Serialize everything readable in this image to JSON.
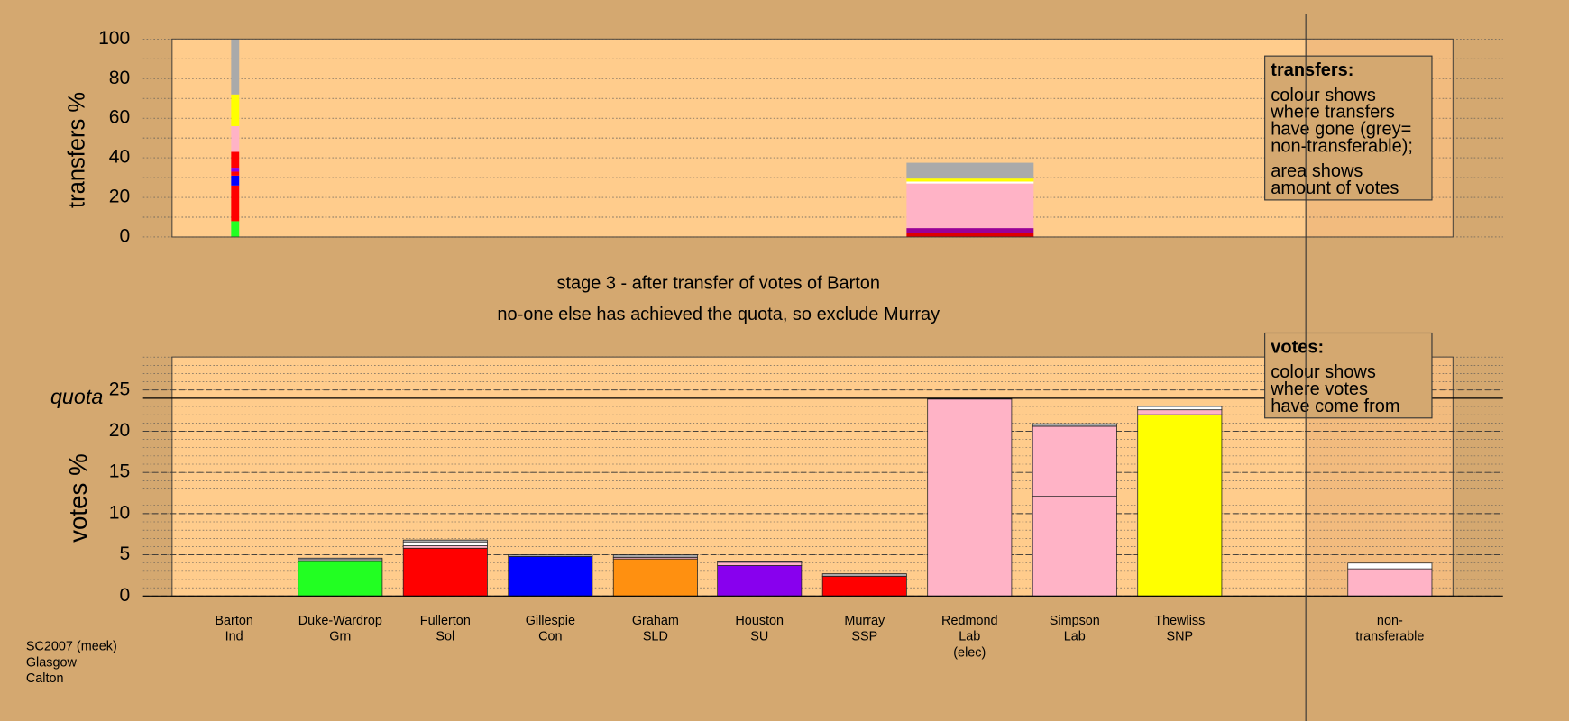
{
  "chart_data": [
    {
      "type": "bar",
      "ylabel": "transfers %",
      "ylim": [
        0,
        100
      ],
      "yticks": [
        0,
        20,
        40,
        60,
        80,
        100
      ],
      "series": [
        {
          "values": [
            8,
            18,
            5,
            2,
            2,
            8,
            13,
            16,
            28
          ],
          "colors": [
            "#22ff22",
            "#ff0000",
            "#0000ff",
            "#ff0000",
            "#8800ee",
            "#ff0000",
            "#ffb3c6",
            "#ffff00",
            "#aaaaaa"
          ]
        },
        {
          "values": [
            2,
            2.5,
            22.5,
            1,
            1.5,
            8
          ],
          "colors": [
            "#dd0000",
            "#990099",
            "#ffb3c6",
            "#ffffff",
            "#ffff00",
            "#aaaaaa"
          ]
        }
      ],
      "legend": {
        "title": "transfers:",
        "paragraphs": [
          [
            "colour shows",
            "where transfers",
            "have gone (grey=",
            "non-transferable);"
          ],
          [
            "area shows",
            "amount of votes"
          ]
        ]
      }
    },
    {
      "type": "bar",
      "ylabel": "votes %",
      "ylim": [
        0,
        29
      ],
      "yticks": [
        0,
        5,
        10,
        15,
        20,
        25
      ],
      "quota": 24,
      "quota_label": "quota",
      "categories": [
        [
          "Barton",
          "Ind"
        ],
        [
          "Duke-Wardrop",
          "Grn"
        ],
        [
          "Fullerton",
          "Sol"
        ],
        [
          "Gillespie",
          "Con"
        ],
        [
          "Graham",
          "SLD"
        ],
        [
          "Houston",
          "SU"
        ],
        [
          "Murray",
          "SSP"
        ],
        [
          "Redmond",
          "Lab",
          "(elec)"
        ],
        [
          "Simpson",
          "Lab"
        ],
        [
          "Thewliss",
          "SNP"
        ],
        [
          "non-",
          "transferable"
        ]
      ],
      "bars": [
        {
          "values": [],
          "colors": []
        },
        {
          "values": [
            4.2,
            0.2,
            0.2
          ],
          "colors": [
            "#22ff22",
            "#ffffff",
            "#aaaaaa"
          ]
        },
        {
          "values": [
            5.8,
            0.3,
            0.4,
            0.3
          ],
          "colors": [
            "#ff0000",
            "#ffb3c6",
            "#ffffff",
            "#aaaaaa"
          ]
        },
        {
          "values": [
            4.8,
            0.2
          ],
          "colors": [
            "#0000ff",
            "#aaaaaa"
          ]
        },
        {
          "values": [
            4.5,
            0.2,
            0.3
          ],
          "colors": [
            "#ff9010",
            "#ffb3c6",
            "#aaaaaa"
          ]
        },
        {
          "values": [
            3.7,
            0.4,
            0.1
          ],
          "colors": [
            "#8800ee",
            "#ffb3c6",
            "#aaaaaa"
          ]
        },
        {
          "values": [
            2.4,
            0.3
          ],
          "colors": [
            "#ff0000",
            "#aaaaaa"
          ]
        },
        {
          "values": [
            23.9,
            0.1
          ],
          "colors": [
            "#ffb3c6",
            "#aaaaaa"
          ]
        },
        {
          "values": [
            12.1,
            8.5,
            0.3
          ],
          "colors": [
            "#ffb3c6",
            "#ffb3c6",
            "#aaaaaa"
          ]
        },
        {
          "values": [
            22.0,
            0.6,
            0.4
          ],
          "colors": [
            "#ffff00",
            "#ffb3c6",
            "#ffffff"
          ]
        },
        {
          "values": [
            3.3,
            0.7
          ],
          "colors": [
            "#ffb3c6",
            "#ffffff"
          ]
        }
      ],
      "legend": {
        "title": "votes:",
        "paragraphs": [
          [
            "colour shows",
            "where votes",
            "have come from"
          ]
        ]
      }
    }
  ],
  "stage": {
    "title": "stage 3 - after transfer of votes of Barton",
    "subtitle": "no-one else has achieved the quota, so exclude Murray"
  },
  "footer": [
    "SC2007 (meek)",
    "Glasgow",
    "Calton"
  ]
}
